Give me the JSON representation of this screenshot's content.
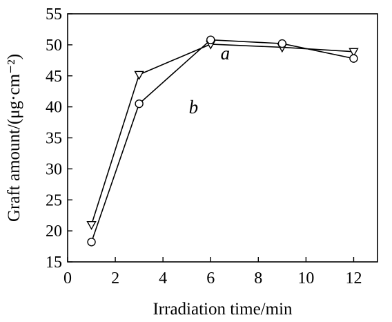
{
  "chart_data": {
    "type": "line",
    "title": "",
    "xlabel": "Irradiation time/min",
    "ylabel": "Graft amount/(μg·cm⁻²)",
    "xlim": [
      0,
      13
    ],
    "ylim": [
      15,
      55
    ],
    "xticks": [
      0,
      2,
      4,
      6,
      8,
      10,
      12
    ],
    "yticks": [
      15,
      20,
      25,
      30,
      35,
      40,
      45,
      50,
      55
    ],
    "grid": false,
    "series": [
      {
        "name": "a",
        "marker": "triangle-down",
        "x": [
          1,
          3,
          6,
          9,
          12
        ],
        "y": [
          21,
          45.2,
          50.1,
          49.6,
          48.9
        ]
      },
      {
        "name": "b",
        "marker": "circle",
        "x": [
          1,
          3,
          6,
          9,
          12
        ],
        "y": [
          18.2,
          40.5,
          50.8,
          50.2,
          47.8
        ]
      }
    ]
  }
}
